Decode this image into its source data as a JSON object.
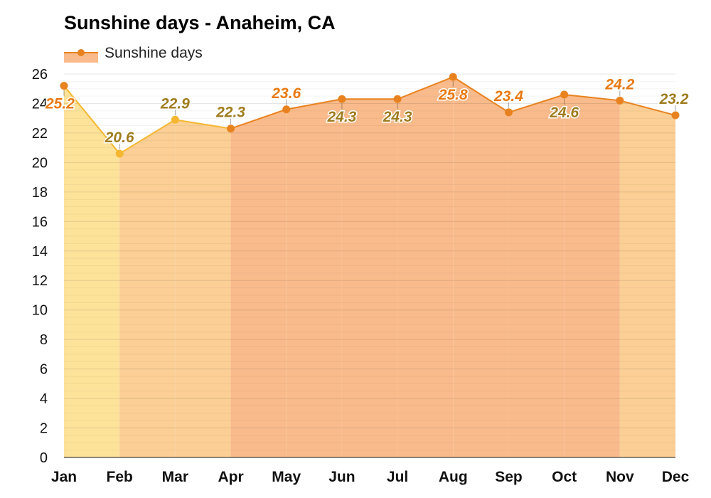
{
  "chart_data": {
    "type": "line",
    "title": "Sunshine days - Anaheim, CA",
    "categories": [
      "Jan",
      "Feb",
      "Mar",
      "Apr",
      "May",
      "Jun",
      "Jul",
      "Aug",
      "Sep",
      "Oct",
      "Nov",
      "Dec"
    ],
    "series": [
      {
        "name": "Sunshine days",
        "values": [
          25.2,
          20.6,
          22.9,
          22.3,
          23.6,
          24.3,
          24.3,
          25.8,
          23.4,
          24.6,
          24.2,
          23.2
        ],
        "labels": [
          "25.2",
          "20.6",
          "22.9",
          "22.3",
          "23.6",
          "24.3",
          "24.3",
          "25.8",
          "23.4",
          "24.6",
          "24.2",
          "23.2"
        ]
      }
    ],
    "ylim": [
      0,
      26
    ],
    "yticks": [
      "0",
      "2",
      "4",
      "6",
      "8",
      "10",
      "12",
      "14",
      "16",
      "18",
      "20",
      "22",
      "24",
      "26"
    ],
    "xlabel": "",
    "ylabel": "",
    "grid": true,
    "legend": "top-left",
    "colors": {
      "line_warm": "#e8821e",
      "line_cool": "#f5b731",
      "marker_warm": "#e8821e",
      "marker_cool": "#f5b731",
      "fill_warm": "#f9bb8c",
      "fill_mid": "#fbcf95",
      "fill_cool": "#fde29a",
      "label_orange": "#e87a12",
      "label_olive": "#a07c1e"
    }
  }
}
